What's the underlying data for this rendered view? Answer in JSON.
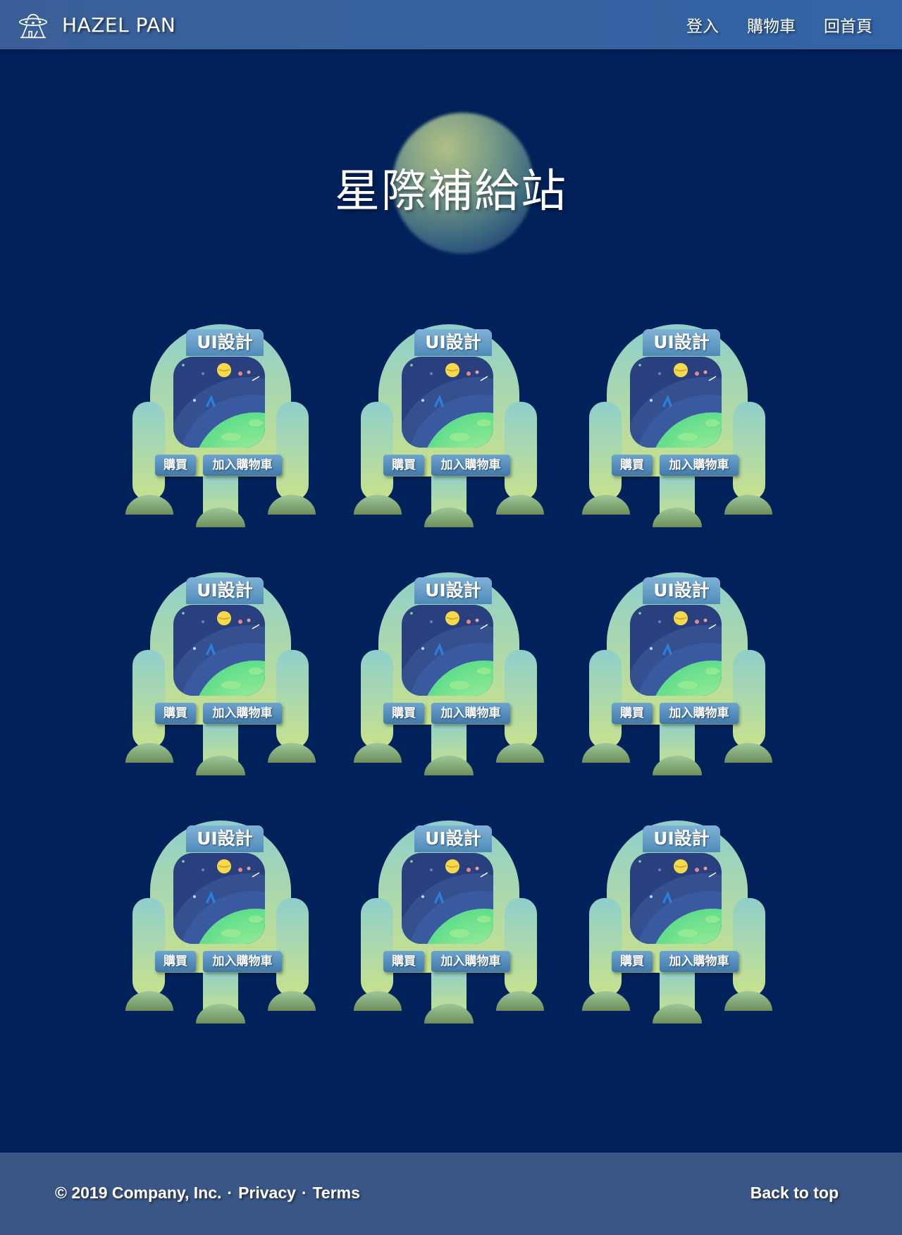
{
  "header": {
    "brand": "HAZEL PAN",
    "nav": [
      "登入",
      "購物車",
      "回首頁"
    ]
  },
  "hero": {
    "title": "星際補給站"
  },
  "products": [
    {
      "title": "UI設計",
      "buy_label": "購買",
      "cart_label": "加入購物車"
    },
    {
      "title": "UI設計",
      "buy_label": "購買",
      "cart_label": "加入購物車"
    },
    {
      "title": "UI設計",
      "buy_label": "購買",
      "cart_label": "加入購物車"
    },
    {
      "title": "UI設計",
      "buy_label": "購買",
      "cart_label": "加入購物車"
    },
    {
      "title": "UI設計",
      "buy_label": "購買",
      "cart_label": "加入購物車"
    },
    {
      "title": "UI設計",
      "buy_label": "購買",
      "cart_label": "加入購物車"
    },
    {
      "title": "UI設計",
      "buy_label": "購買",
      "cart_label": "加入購物車"
    },
    {
      "title": "UI設計",
      "buy_label": "購買",
      "cart_label": "加入購物車"
    },
    {
      "title": "UI設計",
      "buy_label": "購買",
      "cart_label": "加入購物車"
    }
  ],
  "footer": {
    "copyright": "© 2019 Company, Inc.",
    "links": [
      "Privacy",
      "Terms"
    ],
    "separator": "·",
    "back_to_top": "Back to top"
  },
  "colors": {
    "background": "#00215a",
    "navbar": "#3364a6",
    "footer": "#3a5686",
    "robot_top": "#8ecfcb",
    "robot_bottom": "#c8e08f",
    "button": "#5189ba"
  },
  "icons": {
    "logo": "ufo-icon"
  }
}
